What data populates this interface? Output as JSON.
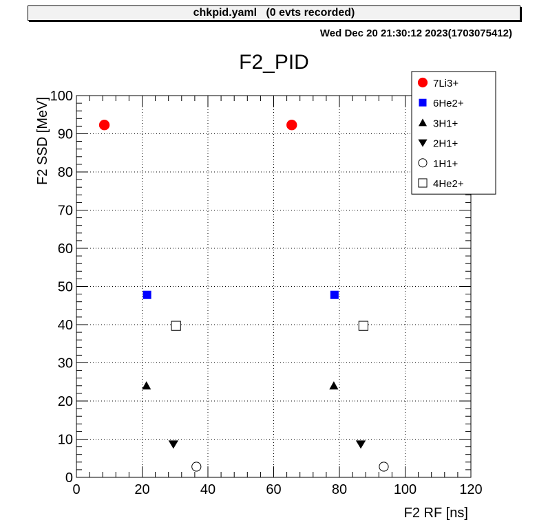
{
  "header": {
    "title": "chkpid.yaml   (0 evts recorded)"
  },
  "timestamp": "Wed Dec 20 21:30:12 2023(1703075412)",
  "chart_data": {
    "type": "scatter",
    "title": "F2_PID",
    "xlabel": "F2 RF [ns]",
    "ylabel": "F2 SSD [MeV]",
    "xlim": [
      0,
      120
    ],
    "ylim": [
      0,
      100
    ],
    "xticks": [
      0,
      20,
      40,
      60,
      80,
      100,
      120
    ],
    "yticks": [
      0,
      10,
      20,
      30,
      40,
      50,
      60,
      70,
      80,
      90,
      100
    ],
    "grid": true,
    "legend_position": "top-right",
    "series": [
      {
        "name": "7Li3+",
        "marker": "circle-filled",
        "color": "#ff0000",
        "points": [
          [
            8.5,
            92.3
          ],
          [
            65.5,
            92.3
          ]
        ]
      },
      {
        "name": "6He2+",
        "marker": "square-filled",
        "color": "#0000ff",
        "points": [
          [
            21.5,
            47.8
          ],
          [
            78.5,
            47.8
          ]
        ]
      },
      {
        "name": "3H1+",
        "marker": "triangle-up-filled",
        "color": "#000000",
        "points": [
          [
            21.3,
            24.0
          ],
          [
            78.3,
            24.0
          ]
        ]
      },
      {
        "name": "2H1+",
        "marker": "triangle-down-filled",
        "color": "#000000",
        "points": [
          [
            29.5,
            8.7
          ],
          [
            86.5,
            8.7
          ]
        ]
      },
      {
        "name": "1H1+",
        "marker": "circle-open",
        "color": "#000000",
        "points": [
          [
            36.5,
            2.8
          ],
          [
            93.5,
            2.8
          ]
        ]
      },
      {
        "name": "4He2+",
        "marker": "square-open",
        "color": "#000000",
        "points": [
          [
            30.3,
            39.7
          ],
          [
            87.3,
            39.7
          ]
        ]
      }
    ]
  }
}
